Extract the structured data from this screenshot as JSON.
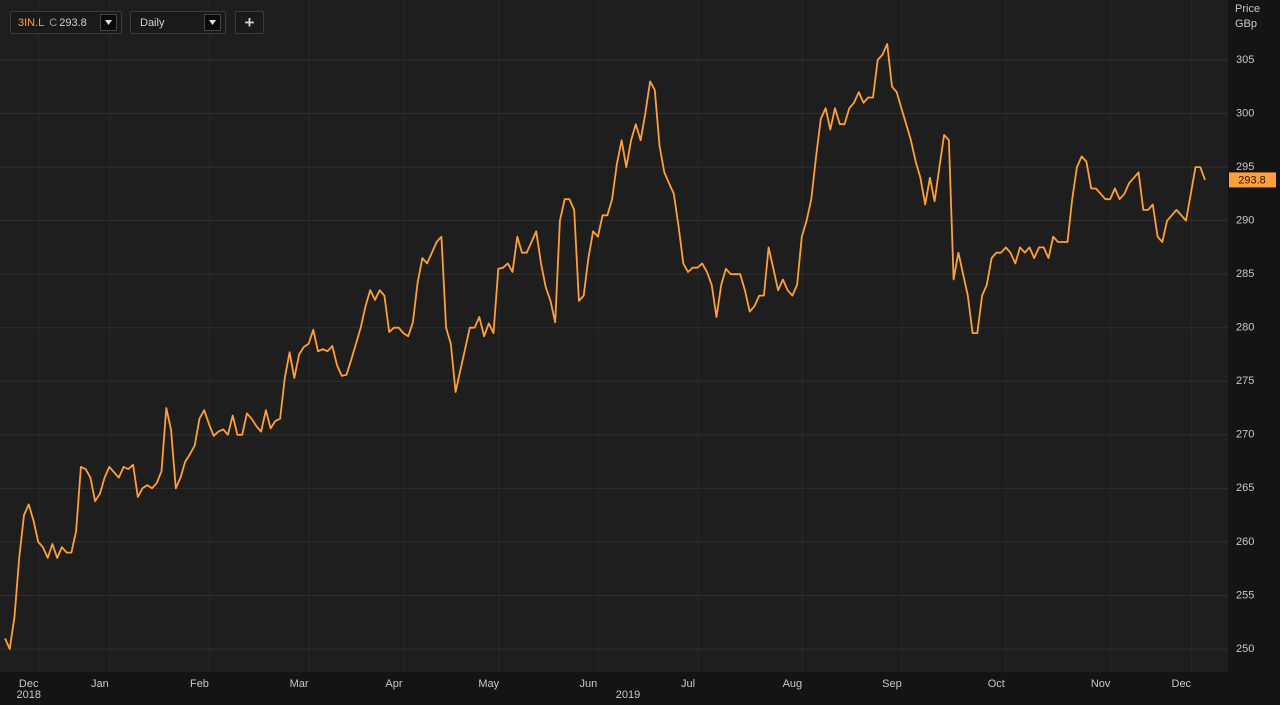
{
  "toolbar": {
    "symbol": "3IN.L",
    "close_prefix": "C",
    "interval": "Daily",
    "add_button": "+"
  },
  "chart_data": {
    "type": "line",
    "y_label": "Price",
    "y_unit": "GBp",
    "color": "#ff9f3a",
    "grid": true,
    "years": [
      "2018",
      "2019"
    ],
    "ylim": [
      247.85,
      310.6
    ],
    "yticks": [
      250,
      255,
      260,
      265,
      270,
      275,
      280,
      285,
      290,
      295,
      300,
      305
    ],
    "categories": [
      null,
      null,
      null,
      null,
      null,
      "Dec",
      null,
      null,
      null,
      null,
      null,
      null,
      null,
      null,
      null,
      null,
      null,
      null,
      null,
      null,
      "Jan",
      null,
      null,
      null,
      null,
      null,
      null,
      null,
      null,
      null,
      null,
      null,
      null,
      null,
      null,
      null,
      null,
      null,
      null,
      null,
      null,
      "Feb",
      null,
      null,
      null,
      null,
      null,
      null,
      null,
      null,
      null,
      null,
      null,
      null,
      null,
      null,
      null,
      null,
      null,
      null,
      null,
      null,
      "Mar",
      null,
      null,
      null,
      null,
      null,
      null,
      null,
      null,
      null,
      null,
      null,
      null,
      null,
      null,
      null,
      null,
      null,
      null,
      null,
      "Apr",
      null,
      null,
      null,
      null,
      null,
      null,
      null,
      null,
      null,
      null,
      null,
      null,
      null,
      null,
      null,
      null,
      null,
      null,
      null,
      "May",
      null,
      null,
      null,
      null,
      null,
      null,
      null,
      null,
      null,
      null,
      null,
      null,
      null,
      null,
      null,
      null,
      null,
      null,
      null,
      null,
      "Jun",
      null,
      null,
      null,
      null,
      null,
      null,
      null,
      null,
      null,
      null,
      null,
      null,
      null,
      null,
      null,
      null,
      null,
      null,
      null,
      null,
      "Jul",
      null,
      null,
      null,
      null,
      null,
      null,
      null,
      null,
      null,
      null,
      null,
      null,
      null,
      null,
      null,
      null,
      null,
      null,
      null,
      null,
      null,
      "Aug",
      null,
      null,
      null,
      null,
      null,
      null,
      null,
      null,
      null,
      null,
      null,
      null,
      null,
      null,
      null,
      null,
      null,
      null,
      null,
      null,
      "Sep",
      null,
      null,
      null,
      null,
      null,
      null,
      null,
      null,
      null,
      null,
      null,
      null,
      null,
      null,
      null,
      null,
      null,
      null,
      null,
      null,
      null,
      "Oct",
      null,
      null,
      null,
      null,
      null,
      null,
      null,
      null,
      null,
      null,
      null,
      null,
      null,
      null,
      null,
      null,
      null,
      null,
      null,
      null,
      null,
      "Nov",
      null,
      null,
      null,
      null,
      null,
      null,
      null,
      null,
      null,
      null,
      null,
      null,
      null,
      null,
      null,
      null,
      "Dec",
      null,
      null,
      null,
      null,
      null
    ],
    "values": [
      251,
      250,
      253,
      258.5,
      262.5,
      263.5,
      262,
      260,
      259.5,
      258.5,
      259.8,
      258.5,
      259.5,
      259,
      259,
      261,
      267,
      266.8,
      266,
      263.8,
      264.5,
      266,
      267,
      266.5,
      266,
      267,
      266.8,
      267.2,
      264.2,
      265,
      265.3,
      265,
      265.5,
      266.6,
      272.5,
      270.5,
      265,
      266,
      267.5,
      268.2,
      269,
      271.5,
      272.3,
      271,
      269.9,
      270.3,
      270.5,
      270,
      271.8,
      270,
      270,
      272,
      271.5,
      270.8,
      270.3,
      272.3,
      270.6,
      271.3,
      271.5,
      275.3,
      277.7,
      275.3,
      277.5,
      278.2,
      278.5,
      279.8,
      277.8,
      278,
      277.8,
      278.3,
      276.5,
      275.5,
      275.6,
      277,
      278.5,
      280,
      282,
      283.5,
      282.6,
      283.5,
      283,
      279.6,
      280,
      280,
      279.5,
      279.2,
      280.5,
      284.2,
      286.5,
      286,
      287,
      288,
      288.5,
      280,
      278.5,
      274,
      276,
      278,
      280,
      280,
      281,
      279.2,
      280.4,
      279.5,
      285.5,
      285.6,
      286,
      285.2,
      288.5,
      287,
      287,
      288,
      289,
      286,
      283.8,
      282.5,
      280.5,
      290,
      292,
      292,
      291,
      282.5,
      283,
      286.5,
      289,
      288.5,
      290.5,
      290.5,
      292,
      295.3,
      297.5,
      295,
      297.5,
      299,
      297.5,
      300,
      303,
      302.2,
      297,
      294.5,
      293.5,
      292.5,
      289.5,
      286,
      285.2,
      285.6,
      285.6,
      286,
      285.2,
      284,
      281,
      284,
      285.5,
      285,
      285,
      285,
      283.5,
      281.5,
      282,
      283,
      283,
      287.5,
      285.5,
      283.5,
      284.5,
      283.5,
      283,
      284,
      288.5,
      290,
      292,
      296,
      299.5,
      300.5,
      298.5,
      300.5,
      299,
      299,
      300.5,
      301,
      302,
      301,
      301.5,
      301.5,
      305,
      305.5,
      306.5,
      302.5,
      302,
      300.5,
      299,
      297.5,
      295.5,
      294,
      291.5,
      294,
      291.8,
      295,
      298,
      297.5,
      284.5,
      287,
      285,
      283,
      279.5,
      279.5,
      283,
      284,
      286.5,
      287,
      287,
      287.5,
      287,
      286,
      287.5,
      287,
      287.5,
      286.5,
      287.5,
      287.5,
      286.5,
      288.5,
      288,
      288,
      288,
      292,
      295,
      296,
      295.5,
      293,
      293,
      292.5,
      292,
      292,
      293,
      292,
      292.5,
      293.5,
      294,
      294.5,
      291,
      291,
      291.5,
      288.5,
      288,
      290,
      290.5,
      291,
      290.5,
      290,
      292.5,
      295,
      295,
      293.8
    ]
  }
}
